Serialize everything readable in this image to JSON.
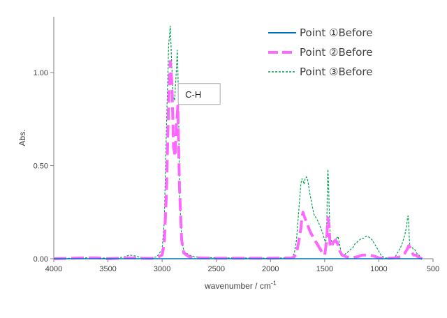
{
  "chart_data": {
    "type": "line",
    "title": "",
    "xlabel": "wavenumber / cm",
    "xlabel_superscript": "-1",
    "ylabel": "Abs.",
    "xlim": [
      4000,
      500
    ],
    "ylim": [
      0,
      1.3
    ],
    "x_ticks": [
      4000,
      3500,
      3000,
      2500,
      2000,
      1500,
      1000,
      500
    ],
    "y_ticks": [
      0.0,
      0.5,
      1.0
    ],
    "y_tick_labels": [
      "0.00",
      "0.50",
      "1.00"
    ],
    "grid": false,
    "legend_position": "top-right",
    "annotations": [
      {
        "text": "C-H",
        "x": 2800,
        "y": 0.87
      }
    ],
    "series": [
      {
        "name": "Point ①Before",
        "color": "#0070c0",
        "style": "solid",
        "x": [
          4000,
          3500,
          3000,
          2500,
          2000,
          1500,
          1000,
          600
        ],
        "y": [
          0.0,
          0.0,
          0.0,
          0.0,
          0.0,
          0.0,
          0.0,
          0.0
        ]
      },
      {
        "name": "Point ②Before",
        "color": "#ff66ff",
        "style": "dashed",
        "x": [
          4000,
          3700,
          3600,
          3500,
          3400,
          3300,
          3200,
          3100,
          3050,
          3000,
          2980,
          2960,
          2940,
          2925,
          2910,
          2895,
          2880,
          2870,
          2855,
          2840,
          2820,
          2800,
          2750,
          2700,
          2500,
          2000,
          1800,
          1780,
          1760,
          1740,
          1720,
          1710,
          1700,
          1690,
          1670,
          1650,
          1630,
          1600,
          1580,
          1560,
          1540,
          1520,
          1500,
          1490,
          1480,
          1470,
          1460,
          1450,
          1440,
          1420,
          1400,
          1380,
          1375,
          1360,
          1340,
          1300,
          1250,
          1200,
          1150,
          1100,
          1050,
          1000,
          950,
          900,
          850,
          800,
          760,
          740,
          725,
          710,
          700,
          690,
          680,
          660,
          640,
          620,
          600
        ],
        "y": [
          0.0,
          0.005,
          0.005,
          0.0,
          0.003,
          0.005,
          0.003,
          0.002,
          0.005,
          0.02,
          0.08,
          0.35,
          0.85,
          1.06,
          0.95,
          0.6,
          0.55,
          0.7,
          0.82,
          0.38,
          0.1,
          0.03,
          0.01,
          0.005,
          0.003,
          0.003,
          0.005,
          0.01,
          0.03,
          0.09,
          0.16,
          0.22,
          0.25,
          0.23,
          0.2,
          0.17,
          0.14,
          0.11,
          0.09,
          0.07,
          0.05,
          0.03,
          0.02,
          0.06,
          0.12,
          0.22,
          0.18,
          0.07,
          0.06,
          0.09,
          0.1,
          0.08,
          0.06,
          0.04,
          0.02,
          0.01,
          0.005,
          0.01,
          0.02,
          0.02,
          0.015,
          0.005,
          0.003,
          0.003,
          0.005,
          0.01,
          0.03,
          0.05,
          0.07,
          0.06,
          0.04,
          0.03,
          0.02,
          0.02,
          0.01,
          0.005,
          0.0
        ]
      },
      {
        "name": "Point ③Before",
        "color": "#00a050",
        "style": "dotted",
        "x": [
          4000,
          3700,
          3600,
          3500,
          3400,
          3350,
          3300,
          3250,
          3200,
          3100,
          3050,
          3000,
          2980,
          2960,
          2940,
          2925,
          2915,
          2900,
          2885,
          2870,
          2860,
          2850,
          2840,
          2820,
          2800,
          2750,
          2700,
          2500,
          2000,
          1850,
          1800,
          1780,
          1760,
          1740,
          1720,
          1710,
          1700,
          1690,
          1680,
          1670,
          1660,
          1650,
          1640,
          1620,
          1600,
          1580,
          1560,
          1540,
          1520,
          1500,
          1490,
          1480,
          1475,
          1470,
          1465,
          1460,
          1450,
          1440,
          1430,
          1420,
          1410,
          1400,
          1390,
          1378,
          1370,
          1360,
          1350,
          1340,
          1320,
          1300,
          1280,
          1260,
          1240,
          1220,
          1200,
          1180,
          1160,
          1140,
          1120,
          1100,
          1080,
          1060,
          1040,
          1020,
          1000,
          980,
          960,
          940,
          920,
          900,
          880,
          860,
          850,
          840,
          830,
          820,
          800,
          780,
          760,
          745,
          735,
          730,
          725,
          720,
          715,
          710,
          700,
          690,
          680,
          670,
          660,
          650,
          640,
          630,
          620,
          610,
          600
        ],
        "y": [
          0.0,
          0.005,
          0.005,
          0.003,
          0.005,
          0.01,
          0.02,
          0.015,
          0.008,
          0.005,
          0.01,
          0.05,
          0.2,
          0.7,
          1.15,
          1.25,
          1.1,
          0.88,
          0.85,
          1.0,
          1.12,
          0.9,
          0.35,
          0.1,
          0.04,
          0.02,
          0.01,
          0.005,
          0.003,
          0.005,
          0.01,
          0.03,
          0.1,
          0.25,
          0.4,
          0.43,
          0.42,
          0.4,
          0.43,
          0.44,
          0.43,
          0.4,
          0.36,
          0.3,
          0.24,
          0.22,
          0.2,
          0.17,
          0.14,
          0.1,
          0.08,
          0.2,
          0.4,
          0.48,
          0.42,
          0.3,
          0.13,
          0.1,
          0.08,
          0.09,
          0.1,
          0.09,
          0.11,
          0.12,
          0.1,
          0.07,
          0.04,
          0.02,
          0.02,
          0.03,
          0.04,
          0.05,
          0.06,
          0.08,
          0.09,
          0.1,
          0.11,
          0.11,
          0.12,
          0.12,
          0.11,
          0.1,
          0.08,
          0.06,
          0.04,
          0.02,
          0.01,
          0.005,
          0.003,
          0.003,
          0.003,
          0.005,
          0.01,
          0.02,
          0.03,
          0.04,
          0.06,
          0.09,
          0.13,
          0.17,
          0.22,
          0.23,
          0.2,
          0.12,
          0.08,
          0.06,
          0.06,
          0.06,
          0.05,
          0.05,
          0.04,
          0.03,
          0.02,
          0.02,
          0.01,
          0.005,
          0.0
        ]
      }
    ]
  }
}
